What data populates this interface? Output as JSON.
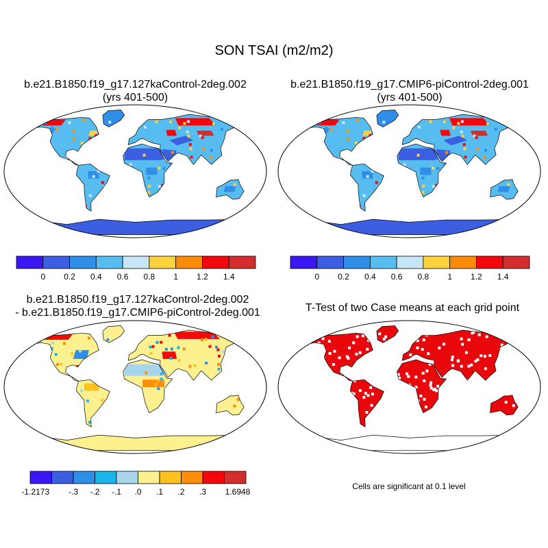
{
  "title": "SON TSAI (m2/m2)",
  "panels": [
    {
      "id": "p1",
      "title_line1": "b.e21.B1850.f19_g17.127kaControl-2deg.002",
      "title_line2": "(yrs 401-500)"
    },
    {
      "id": "p2",
      "title_line1": "b.e21.B1850.f19_g17.CMIP6-piControl-2deg.001",
      "title_line2": "(yrs 401-500)"
    },
    {
      "id": "p3",
      "title_line1": "b.e21.B1850.f19_g17.127kaControl-2deg.002",
      "title_line2": "- b.e21.B1850.f19_g17.CMIP6-piControl-2deg.001"
    },
    {
      "id": "p4",
      "title_line1": "T-Test of two Case means at each grid point"
    }
  ],
  "colorbar_abs": {
    "colors": [
      "#3a17f5",
      "#3c5ee0",
      "#2e8ee8",
      "#57bdf0",
      "#c6e5f5",
      "#fdd23e",
      "#fc8b08",
      "#f2080c",
      "#d42e2c"
    ],
    "labels": [
      "0",
      "0.2",
      "0.4",
      "0.6",
      "0.8",
      "1",
      "1.2",
      "1.4"
    ]
  },
  "colorbar_diff": {
    "colors": [
      "#3a17f5",
      "#3c5ee0",
      "#2e8ee8",
      "#1ab4ea",
      "#a8d4ec",
      "#fdf08e",
      "#fdc21e",
      "#fd8d0a",
      "#f4080a",
      "#d22e2d"
    ],
    "labels": [
      "-1.2173",
      "-.3",
      "-.2",
      "-.1",
      ".0",
      ".1",
      ".2",
      ".3",
      "1.6948"
    ]
  },
  "significance_note": "Cells are significant at 0.1 level",
  "map_colors": {
    "sig": "#e8080c"
  }
}
